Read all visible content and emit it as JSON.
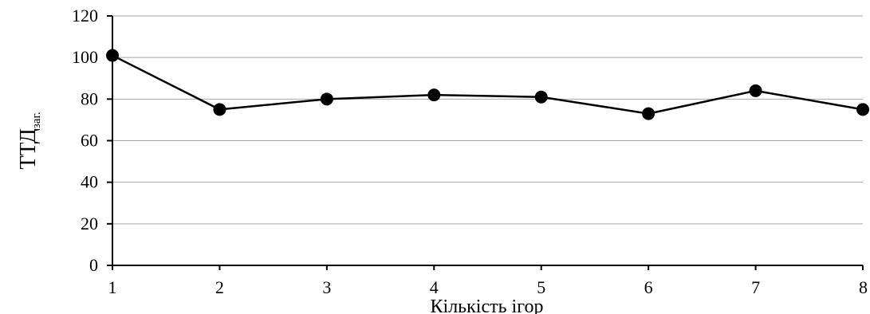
{
  "chart_data": {
    "type": "line",
    "xlabel": "Кількість ігор",
    "ylabel": "ТТД",
    "ylabel_subscript": "заг.",
    "categories": [
      "1",
      "2",
      "3",
      "4",
      "5",
      "6",
      "7",
      "8"
    ],
    "series": [
      {
        "values": [
          101,
          75,
          80,
          82,
          81,
          73,
          84,
          75
        ]
      }
    ],
    "ylim": [
      0,
      120
    ],
    "yticks": [
      0,
      20,
      40,
      60,
      80,
      100,
      120
    ],
    "grid": "horizontal",
    "marker": "circle",
    "line_color": "#000000",
    "grid_color": "#a6a6a6"
  }
}
